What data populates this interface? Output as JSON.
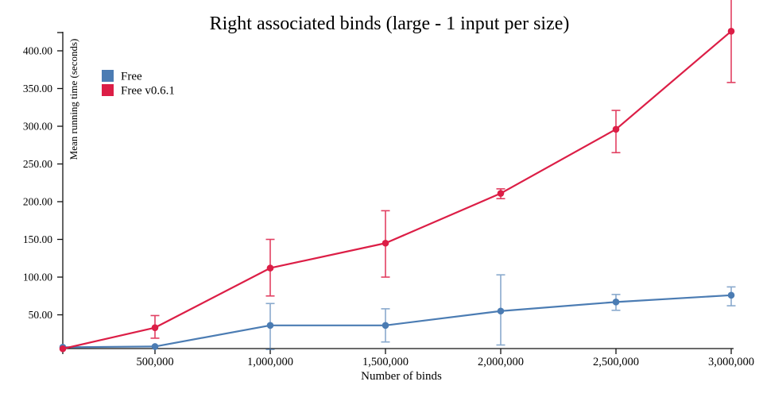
{
  "title": "Right associated binds (large - 1 input per size)",
  "x_axis": {
    "label": "Number of binds",
    "tick_values": [
      500000,
      1000000,
      1500000,
      2000000,
      2500000,
      3000000
    ],
    "tick_labels": [
      "500,000",
      "1,000,000",
      "1,500,000",
      "2,000,000",
      "2,500,000",
      "3,000,000"
    ]
  },
  "y_axis": {
    "label": "Mean running time (seconds)",
    "tick_values": [
      50,
      100,
      150,
      200,
      250,
      300,
      350,
      400
    ],
    "tick_labels": [
      "50.00",
      "100.00",
      "150.00",
      "200.00",
      "250.00",
      "300.00",
      "350.00",
      "400.00"
    ]
  },
  "legend": [
    {
      "label": "Free",
      "color": "#4b7cb3"
    },
    {
      "label": "Free v0.6.1",
      "color": "#dc1e46"
    }
  ],
  "chart_data": {
    "type": "line",
    "title": "Right associated binds (large - 1 input per size)",
    "xlabel": "Number of binds",
    "ylabel": "Mean running time (seconds)",
    "x": [
      100000,
      500000,
      1000000,
      1500000,
      2000000,
      2500000,
      3000000
    ],
    "xlim": [
      100000,
      3000000
    ],
    "ylim": [
      0,
      420
    ],
    "grid": false,
    "legend_position": "top-left",
    "series": [
      {
        "name": "Free",
        "color": "#4b7cb3",
        "err_opacity": 0.65,
        "values": [
          7,
          8,
          36,
          36,
          55,
          67,
          76
        ],
        "err_low": [
          null,
          null,
          4,
          14,
          10,
          56,
          62
        ],
        "err_high": [
          null,
          null,
          65,
          58,
          103,
          77,
          87
        ]
      },
      {
        "name": "Free v0.6.1",
        "color": "#dc1e46",
        "err_opacity": 0.85,
        "values": [
          5,
          33,
          112,
          145,
          211,
          296,
          426
        ],
        "err_low": [
          null,
          19,
          75,
          100,
          204,
          265,
          358
        ],
        "err_high": [
          null,
          49,
          150,
          188,
          217,
          321,
          null
        ]
      }
    ]
  }
}
